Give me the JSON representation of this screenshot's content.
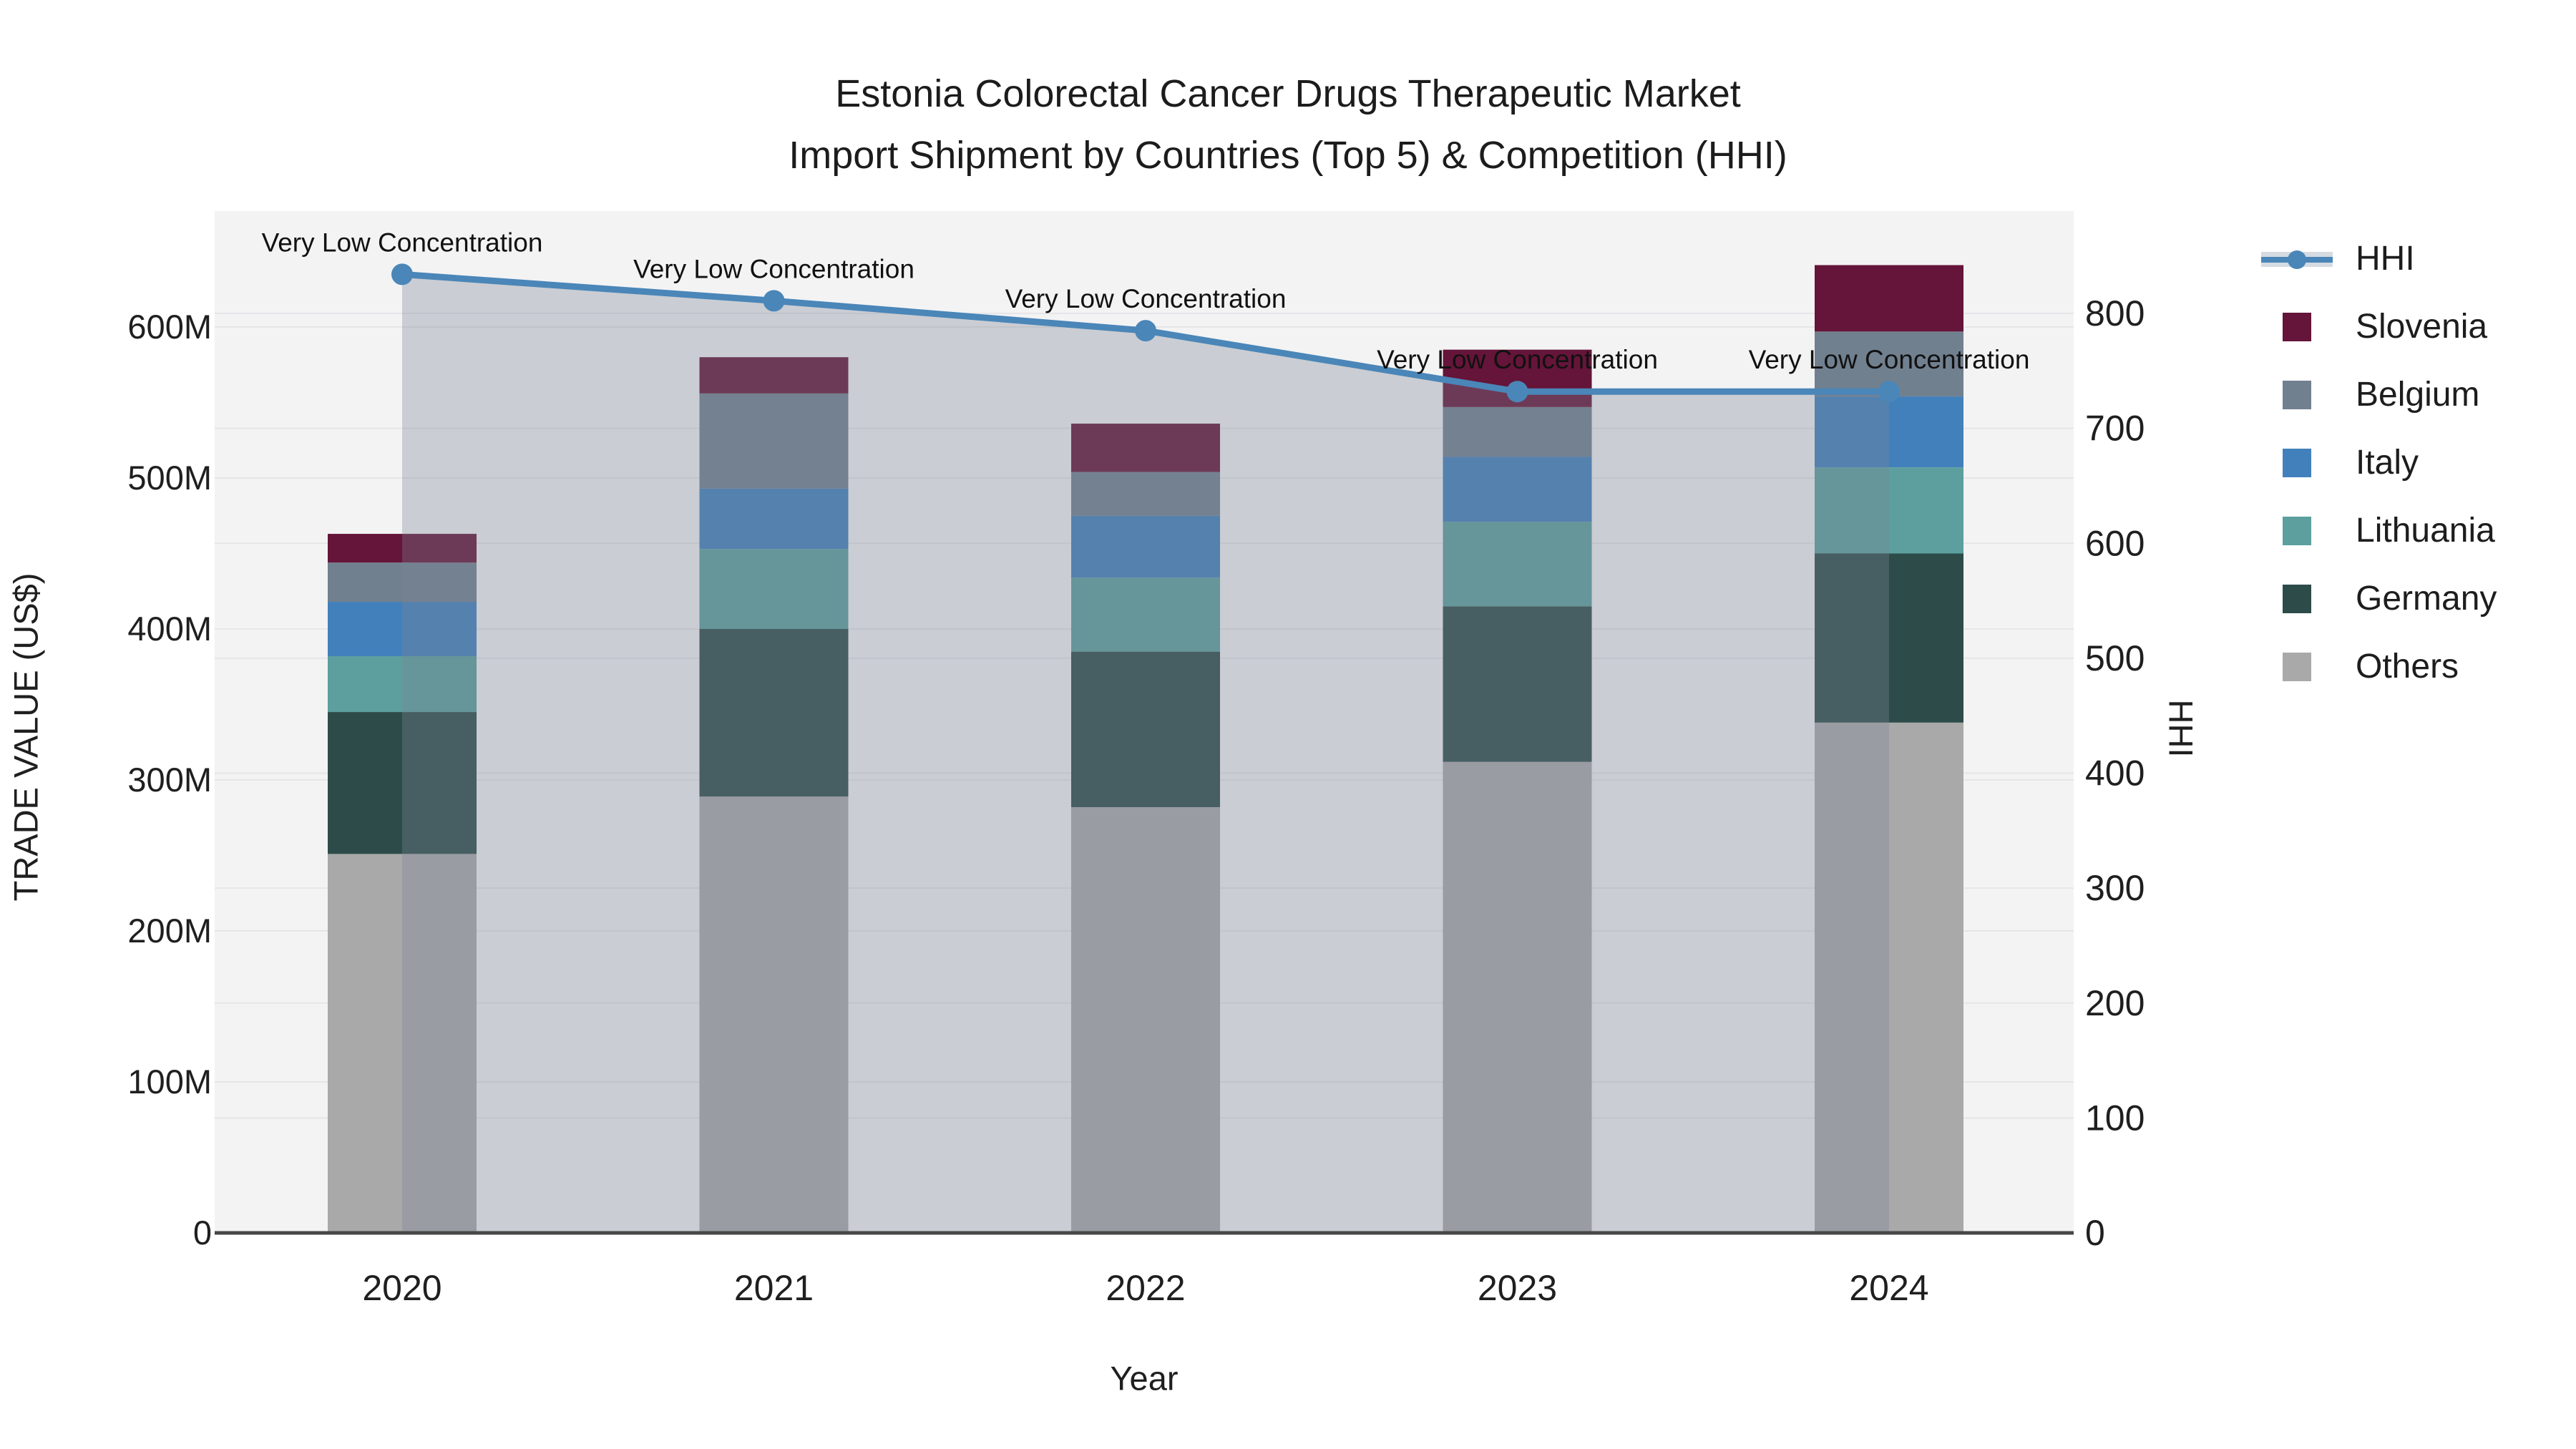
{
  "title": {
    "line1": "Estonia Colorectal Cancer Drugs Therapeutic Market",
    "line2": "Import Shipment by Countries (Top 5) & Competition (HHI)"
  },
  "axes": {
    "x": {
      "title": "Year",
      "categories": [
        "2020",
        "2021",
        "2022",
        "2023",
        "2024"
      ]
    },
    "y_left": {
      "title": "TRADE VALUE (US$)",
      "tick_labels": [
        "0",
        "100M",
        "200M",
        "300M",
        "400M",
        "500M",
        "600M"
      ],
      "tick_values_m": [
        0,
        100,
        200,
        300,
        400,
        500,
        600
      ]
    },
    "y_right": {
      "title": "HHI",
      "tick_labels": [
        "0",
        "100",
        "200",
        "300",
        "400",
        "500",
        "600",
        "700",
        "800"
      ],
      "tick_values": [
        0,
        100,
        200,
        300,
        400,
        500,
        600,
        700,
        800
      ]
    }
  },
  "legend": {
    "items": [
      {
        "label": "HHI",
        "icon": "hhi-line-icon",
        "color": "#4A86B8"
      },
      {
        "label": "Slovenia",
        "icon": "swatch",
        "color": "#651539"
      },
      {
        "label": "Belgium",
        "icon": "swatch",
        "color": "#71808F"
      },
      {
        "label": "Italy",
        "icon": "swatch",
        "color": "#4280BC"
      },
      {
        "label": "Lithuania",
        "icon": "swatch",
        "color": "#5C9F9E"
      },
      {
        "label": "Germany",
        "icon": "swatch",
        "color": "#2D4C49"
      },
      {
        "label": "Others",
        "icon": "swatch",
        "color": "#A9A9AA"
      }
    ]
  },
  "chart_data": {
    "type": "bar",
    "subtype": "stacked-bar-with-line",
    "title": "Estonia Colorectal Cancer Drugs Therapeutic Market Import Shipment by Countries (Top 5) & Competition (HHI)",
    "categories": [
      "2020",
      "2021",
      "2022",
      "2023",
      "2024"
    ],
    "stack_order_bottom_to_top": [
      "Others",
      "Germany",
      "Lithuania",
      "Italy",
      "Belgium",
      "Slovenia"
    ],
    "series": [
      {
        "name": "Slovenia",
        "type": "bar",
        "color": "#651539",
        "values_musd": [
          19,
          24,
          32,
          38,
          44
        ]
      },
      {
        "name": "Belgium",
        "type": "bar",
        "color": "#71808F",
        "values_musd": [
          26,
          63,
          29,
          33,
          43
        ]
      },
      {
        "name": "Italy",
        "type": "bar",
        "color": "#4280BC",
        "values_musd": [
          36,
          40,
          41,
          43,
          47
        ]
      },
      {
        "name": "Lithuania",
        "type": "bar",
        "color": "#5C9F9E",
        "values_musd": [
          37,
          53,
          49,
          56,
          57
        ]
      },
      {
        "name": "Germany",
        "type": "bar",
        "color": "#2D4C49",
        "values_musd": [
          94,
          111,
          103,
          103,
          112
        ]
      },
      {
        "name": "Others",
        "type": "bar",
        "color": "#A9A9AA",
        "values_musd": [
          251,
          289,
          282,
          312,
          338
        ]
      }
    ],
    "bar_totals_musd": [
      463,
      580,
      536,
      585,
      641
    ],
    "hhi_series": {
      "name": "HHI",
      "type": "line",
      "color": "#4A86B8",
      "values": [
        834,
        811,
        785,
        732,
        732
      ],
      "annotations": [
        "Very Low Concentration",
        "Very Low Concentration",
        "Very Low Concentration",
        "Very Low Concentration",
        "Very Low Concentration"
      ]
    },
    "xlabel": "Year",
    "ylabel": "TRADE VALUE (US$)",
    "ylabel_right": "HHI",
    "ylim_left_musd": [
      0,
      677
    ],
    "ylim_right_hhi": [
      0,
      889
    ],
    "grid": true,
    "legend_position": "right"
  },
  "colors": {
    "plot_bg": "#F3F3F4",
    "grid": "#E6E6E9",
    "axis_line": "#474747",
    "hhi_line": "#4A86B8",
    "hhi_fill": "rgba(122,132,148,0.34)",
    "text": "#1F1F1F"
  }
}
